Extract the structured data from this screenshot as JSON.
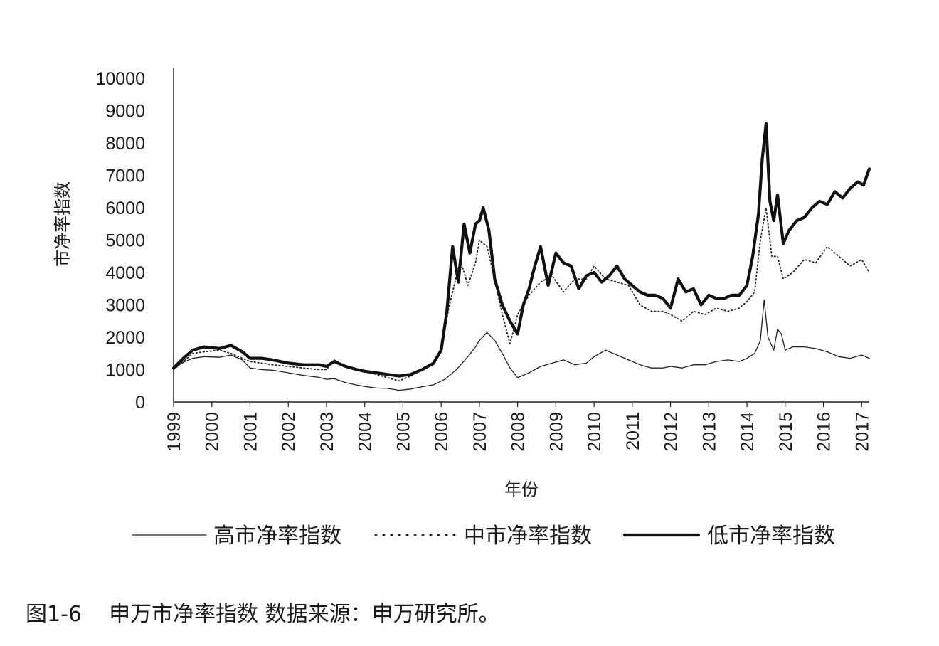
{
  "caption": "图1-6    申万市净率指数 数据来源：申万研究所。",
  "chart_data": {
    "type": "line",
    "xlabel": "年份",
    "ylabel": "市净率指数",
    "ylim": [
      0,
      10000
    ],
    "yticks": [
      0,
      1000,
      2000,
      3000,
      4000,
      5000,
      6000,
      7000,
      8000,
      9000,
      10000
    ],
    "xlim": [
      1999,
      2017.2
    ],
    "xticks": [
      "1999",
      "2000",
      "2001",
      "2002",
      "2003",
      "2004",
      "2005",
      "2006",
      "2007",
      "2008",
      "2009",
      "2010",
      "2011",
      "2012",
      "2013",
      "2014",
      "2015",
      "2016",
      "2017"
    ],
    "grid": false,
    "legend_position": "bottom",
    "series": [
      {
        "name": "高市净率指数",
        "style": "thin",
        "color": "#222222",
        "x": [
          1999.0,
          1999.3,
          1999.5,
          1999.8,
          2000.2,
          2000.5,
          2000.8,
          2001.0,
          2001.3,
          2001.6,
          2002.0,
          2002.4,
          2002.8,
          2003.0,
          2003.2,
          2003.5,
          2003.8,
          2004.0,
          2004.3,
          2004.6,
          2004.9,
          2005.2,
          2005.5,
          2005.8,
          2006.1,
          2006.4,
          2006.7,
          2006.9,
          2007.0,
          2007.2,
          2007.4,
          2007.6,
          2007.8,
          2008.0,
          2008.3,
          2008.6,
          2008.9,
          2009.2,
          2009.5,
          2009.8,
          2010.0,
          2010.3,
          2010.6,
          2010.9,
          2011.2,
          2011.5,
          2011.8,
          2012.0,
          2012.3,
          2012.6,
          2012.9,
          2013.2,
          2013.5,
          2013.8,
          2014.0,
          2014.2,
          2014.35,
          2014.45,
          2014.55,
          2014.7,
          2014.8,
          2014.9,
          2015.0,
          2015.2,
          2015.5,
          2015.8,
          2016.1,
          2016.4,
          2016.7,
          2017.0,
          2017.2
        ],
        "y": [
          1050,
          1250,
          1350,
          1400,
          1380,
          1450,
          1300,
          1050,
          1000,
          980,
          900,
          820,
          760,
          700,
          720,
          600,
          520,
          480,
          430,
          420,
          360,
          400,
          470,
          530,
          700,
          1000,
          1400,
          1700,
          1900,
          2150,
          1900,
          1500,
          1050,
          750,
          900,
          1100,
          1200,
          1300,
          1150,
          1200,
          1400,
          1600,
          1450,
          1300,
          1150,
          1050,
          1050,
          1100,
          1050,
          1150,
          1150,
          1250,
          1300,
          1250,
          1350,
          1500,
          1900,
          3150,
          2000,
          1600,
          2250,
          2100,
          1600,
          1700,
          1700,
          1650,
          1550,
          1400,
          1350,
          1450,
          1350
        ]
      },
      {
        "name": "中市净率指数",
        "style": "dotted",
        "color": "#222222",
        "x": [
          1999.0,
          1999.3,
          1999.5,
          1999.8,
          2000.2,
          2000.5,
          2000.8,
          2001.0,
          2001.3,
          2001.6,
          2002.0,
          2002.4,
          2002.8,
          2003.0,
          2003.2,
          2003.5,
          2003.8,
          2004.0,
          2004.3,
          2004.6,
          2004.9,
          2005.2,
          2005.5,
          2005.8,
          2006.0,
          2006.2,
          2006.5,
          2006.7,
          2006.9,
          2007.0,
          2007.2,
          2007.4,
          2007.6,
          2007.8,
          2008.0,
          2008.3,
          2008.6,
          2008.9,
          2009.2,
          2009.5,
          2009.8,
          2010.0,
          2010.3,
          2010.6,
          2010.9,
          2011.2,
          2011.5,
          2011.8,
          2012.0,
          2012.3,
          2012.6,
          2012.9,
          2013.2,
          2013.5,
          2013.8,
          2014.0,
          2014.2,
          2014.35,
          2014.5,
          2014.65,
          2014.8,
          2014.95,
          2015.2,
          2015.5,
          2015.8,
          2016.1,
          2016.4,
          2016.7,
          2017.0,
          2017.2
        ],
        "y": [
          1000,
          1300,
          1500,
          1550,
          1600,
          1500,
          1350,
          1250,
          1200,
          1150,
          1100,
          1050,
          1000,
          1000,
          1300,
          1100,
          1000,
          950,
          850,
          750,
          650,
          800,
          1000,
          1150,
          1600,
          2900,
          4400,
          3600,
          4300,
          5000,
          4800,
          3800,
          2700,
          1800,
          2700,
          3300,
          3700,
          3900,
          3400,
          3800,
          3800,
          4200,
          3800,
          3700,
          3600,
          3000,
          2800,
          2800,
          2700,
          2500,
          2800,
          2700,
          2900,
          2800,
          2900,
          3100,
          3400,
          5000,
          6000,
          4500,
          4500,
          3800,
          4000,
          4400,
          4300,
          4800,
          4500,
          4200,
          4400,
          4000
        ]
      },
      {
        "name": "低市净率指数",
        "style": "thick",
        "color": "#111111",
        "x": [
          1999.0,
          1999.3,
          1999.5,
          1999.8,
          2000.2,
          2000.5,
          2000.8,
          2001.0,
          2001.3,
          2001.6,
          2002.0,
          2002.4,
          2002.8,
          2003.0,
          2003.2,
          2003.5,
          2003.8,
          2004.0,
          2004.3,
          2004.6,
          2004.9,
          2005.2,
          2005.5,
          2005.8,
          2006.0,
          2006.15,
          2006.3,
          2006.45,
          2006.6,
          2006.75,
          2006.9,
          2007.0,
          2007.1,
          2007.25,
          2007.4,
          2007.6,
          2007.8,
          2008.0,
          2008.15,
          2008.3,
          2008.45,
          2008.6,
          2008.8,
          2009.0,
          2009.2,
          2009.4,
          2009.6,
          2009.8,
          2010.0,
          2010.2,
          2010.4,
          2010.6,
          2010.8,
          2011.0,
          2011.2,
          2011.4,
          2011.6,
          2011.8,
          2012.0,
          2012.2,
          2012.4,
          2012.6,
          2012.8,
          2013.0,
          2013.2,
          2013.4,
          2013.6,
          2013.8,
          2014.0,
          2014.15,
          2014.3,
          2014.4,
          2014.5,
          2014.6,
          2014.7,
          2014.8,
          2014.95,
          2015.1,
          2015.3,
          2015.5,
          2015.7,
          2015.9,
          2016.1,
          2016.3,
          2016.5,
          2016.7,
          2016.9,
          2017.05,
          2017.2
        ],
        "y": [
          1050,
          1400,
          1600,
          1700,
          1650,
          1750,
          1550,
          1350,
          1350,
          1300,
          1200,
          1150,
          1150,
          1100,
          1250,
          1100,
          1000,
          950,
          900,
          850,
          800,
          850,
          1000,
          1200,
          1600,
          2800,
          4800,
          3700,
          5500,
          4600,
          5500,
          5600,
          6000,
          5300,
          3800,
          3000,
          2500,
          2100,
          3000,
          3500,
          4200,
          4800,
          3600,
          4600,
          4300,
          4200,
          3500,
          3900,
          4000,
          3700,
          3900,
          4200,
          3800,
          3600,
          3400,
          3300,
          3300,
          3200,
          2900,
          3800,
          3400,
          3500,
          3000,
          3300,
          3200,
          3200,
          3300,
          3300,
          3600,
          4500,
          5800,
          7500,
          8600,
          6200,
          5600,
          6400,
          4900,
          5300,
          5600,
          5700,
          6000,
          6200,
          6100,
          6500,
          6300,
          6600,
          6800,
          6700,
          7200
        ]
      }
    ]
  }
}
